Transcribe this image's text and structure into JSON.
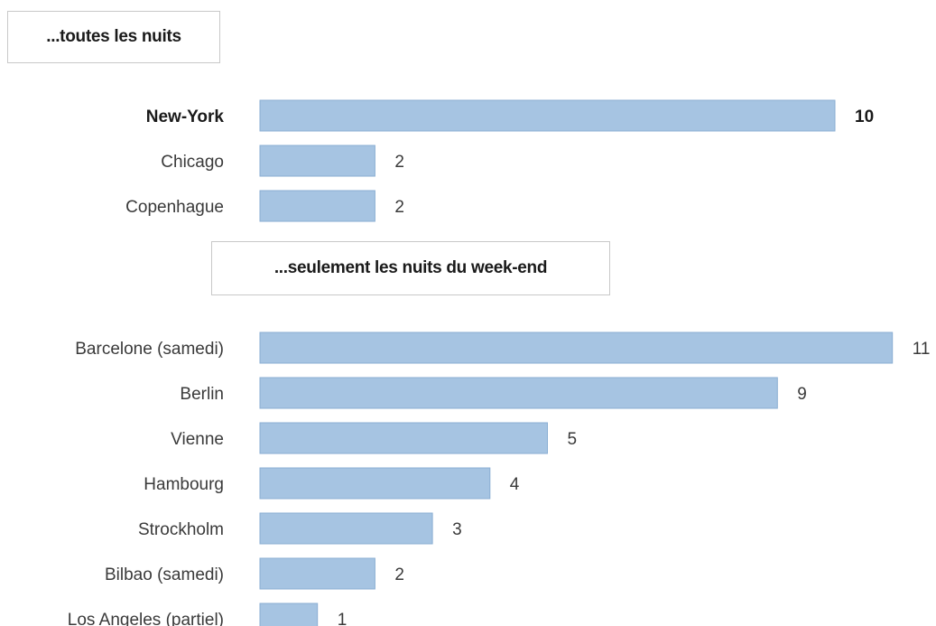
{
  "sections": [
    {
      "title": "...toutes les nuits"
    },
    {
      "title": "...seulement les nuits du week-end"
    }
  ],
  "colors": {
    "bar_fill": "#a6c4e2",
    "bar_stroke": "#8aaed3"
  },
  "chart_data": [
    {
      "type": "bar",
      "orientation": "horizontal",
      "title": "...toutes les nuits",
      "categories": [
        "New-York",
        "Chicago",
        "Copenhague"
      ],
      "values": [
        10,
        2,
        2
      ],
      "highlight": [
        "New-York"
      ]
    },
    {
      "type": "bar",
      "orientation": "horizontal",
      "title": "...seulement les nuits du week-end",
      "categories": [
        "Barcelone (samedi)",
        "Berlin",
        "Vienne",
        "Hambourg",
        "Strockholm",
        "Bilbao (samedi)",
        "Los Angeles (partiel)"
      ],
      "values": [
        11,
        9,
        5,
        4,
        3,
        2,
        1
      ]
    }
  ]
}
